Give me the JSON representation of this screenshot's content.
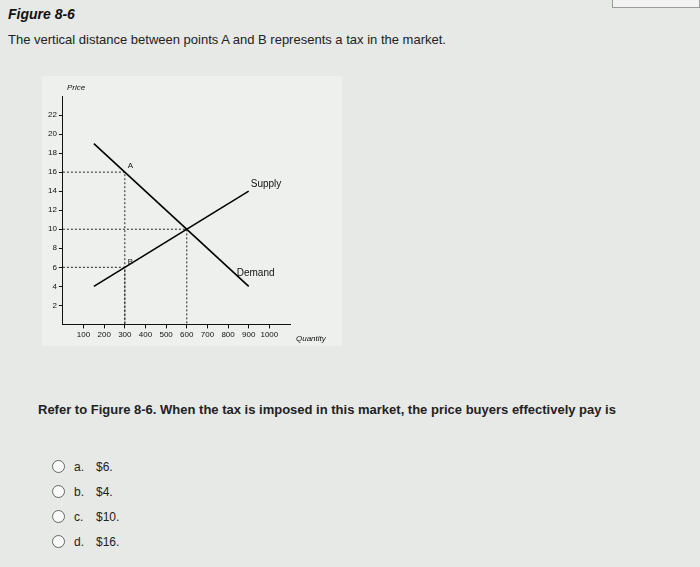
{
  "header": {
    "title": "Figure 8-6",
    "caption": "The vertical distance between points A and B represents a tax in the market."
  },
  "chart_data": {
    "type": "line",
    "x_label": "Quantity",
    "y_label": "Price",
    "x": [
      150,
      900
    ],
    "series": [
      {
        "name": "Supply",
        "color": "#000000",
        "values": [
          4,
          14
        ]
      },
      {
        "name": "Demand",
        "color": "#000000",
        "values": [
          19,
          4
        ]
      }
    ],
    "points": [
      {
        "label": "A",
        "x": 300,
        "y": 16
      },
      {
        "label": "B",
        "x": 300,
        "y": 6
      },
      {
        "x": 600,
        "y": 10
      }
    ],
    "xlim": [
      0,
      1100
    ],
    "xticks": [
      100,
      200,
      300,
      400,
      500,
      600,
      700,
      800,
      900,
      1000
    ],
    "ylim": [
      0,
      24
    ],
    "yticks": [
      2,
      4,
      6,
      8,
      10,
      12,
      14,
      16,
      18,
      20,
      22
    ],
    "grid": false
  },
  "question": {
    "text": "Refer to Figure 8-6. When the tax is imposed in this market, the price buyers effectively pay is",
    "options": [
      {
        "letter": "a.",
        "text": "$6."
      },
      {
        "letter": "b.",
        "text": "$4."
      },
      {
        "letter": "c.",
        "text": "$10."
      },
      {
        "letter": "d.",
        "text": "$16."
      }
    ]
  }
}
